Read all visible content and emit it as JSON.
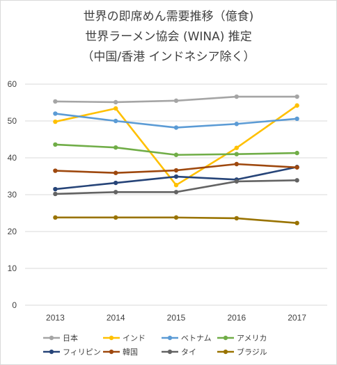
{
  "chart_data": {
    "type": "line",
    "title": [
      "世界の即席めん需要推移（億食)",
      "世界ラーメン協会 (WINA) 推定",
      "（中国/香港 インドネシア除く）"
    ],
    "categories": [
      "2013",
      "2014",
      "2015",
      "2016",
      "2017"
    ],
    "ylim": [
      0,
      60
    ],
    "yticks": [
      0,
      10,
      20,
      30,
      40,
      50,
      60
    ],
    "grid": true,
    "legend_position": "bottom",
    "series": [
      {
        "name": "日本",
        "color": "#a5a5a5",
        "values": [
          55.3,
          55.1,
          55.5,
          56.6,
          56.6
        ]
      },
      {
        "name": "インド",
        "color": "#ffc000",
        "values": [
          49.8,
          53.4,
          32.6,
          42.7,
          54.2
        ]
      },
      {
        "name": "ベトナム",
        "color": "#5b9bd5",
        "values": [
          52.0,
          50.0,
          48.2,
          49.2,
          50.6
        ]
      },
      {
        "name": "アメリカ",
        "color": "#70ad47",
        "values": [
          43.6,
          42.8,
          40.8,
          41.0,
          41.3
        ]
      },
      {
        "name": "フィリピン",
        "color": "#264478",
        "values": [
          31.5,
          33.2,
          34.9,
          34.1,
          37.5
        ]
      },
      {
        "name": "韓国",
        "color": "#9e480e",
        "values": [
          36.5,
          35.9,
          36.6,
          38.3,
          37.4
        ]
      },
      {
        "name": "タイ",
        "color": "#636363",
        "values": [
          30.2,
          30.7,
          30.7,
          33.6,
          33.9
        ]
      },
      {
        "name": "ブラジル",
        "color": "#997300",
        "values": [
          23.8,
          23.8,
          23.8,
          23.6,
          22.3
        ]
      }
    ]
  }
}
